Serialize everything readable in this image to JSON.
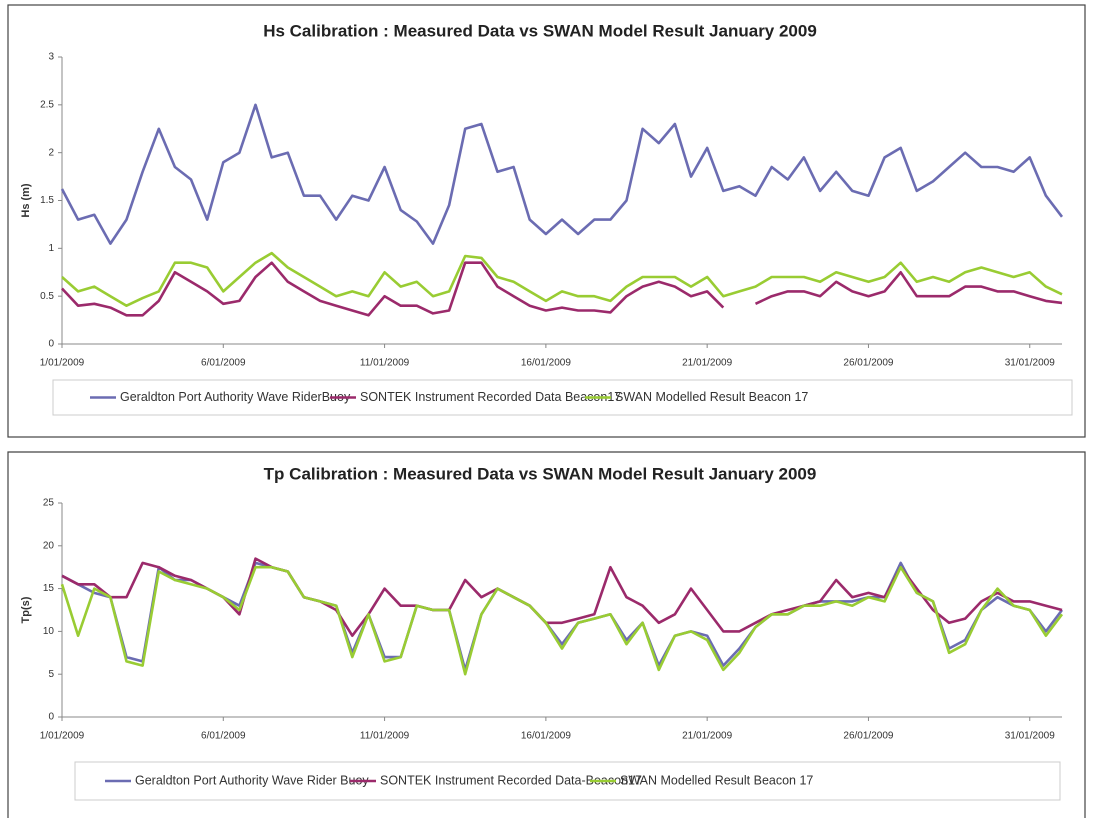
{
  "chart_data": [
    {
      "type": "line",
      "title": "Hs Calibration : Measured Data  vs SWAN Model Result January 2009",
      "y_label": "Hs (m)",
      "x": [
        0,
        0.5,
        1,
        1.5,
        2,
        2.5,
        3,
        3.5,
        4,
        4.5,
        5,
        5.5,
        6,
        6.5,
        7,
        7.5,
        8,
        8.5,
        9,
        9.5,
        10,
        10.5,
        11,
        11.5,
        12,
        12.5,
        13,
        13.5,
        14,
        14.5,
        15,
        15.5,
        16,
        16.5,
        17,
        17.5,
        18,
        18.5,
        19,
        19.5,
        20,
        20.5,
        21,
        21.5,
        22,
        22.5,
        23,
        23.5,
        24,
        24.5,
        25,
        25.5,
        26,
        26.5,
        27,
        27.5,
        28,
        28.5,
        29,
        29.5,
        30,
        30.5,
        31
      ],
      "xlim": [
        0,
        31
      ],
      "xticks": [
        {
          "value": 0,
          "label": "1/01/2009"
        },
        {
          "value": 5,
          "label": "6/01/2009"
        },
        {
          "value": 10,
          "label": "11/01/2009"
        },
        {
          "value": 15,
          "label": "16/01/2009"
        },
        {
          "value": 20,
          "label": "21/01/2009"
        },
        {
          "value": 25,
          "label": "26/01/2009"
        },
        {
          "value": 30,
          "label": "31/01/2009"
        }
      ],
      "ylim": [
        0,
        3
      ],
      "yticks": [
        0,
        0.5,
        1,
        1.5,
        2,
        2.5,
        3
      ],
      "grid": false,
      "legend": "bottom",
      "series": [
        {
          "name": "Geraldton Port Authority Wave RiderBuoy",
          "color": "#6b6cb2",
          "values": [
            1.62,
            1.3,
            1.35,
            1.05,
            1.3,
            1.8,
            2.25,
            1.85,
            1.72,
            1.3,
            1.9,
            2.0,
            2.5,
            1.95,
            2.0,
            1.55,
            1.55,
            1.3,
            1.55,
            1.5,
            1.85,
            1.4,
            1.28,
            1.05,
            1.45,
            2.25,
            2.3,
            1.8,
            1.85,
            1.3,
            1.15,
            1.3,
            1.15,
            1.3,
            1.3,
            1.5,
            2.25,
            2.1,
            2.3,
            1.75,
            2.05,
            1.6,
            1.65,
            1.55,
            1.85,
            1.72,
            1.95,
            1.6,
            1.8,
            1.6,
            1.55,
            1.95,
            2.05,
            1.6,
            1.7,
            1.85,
            2.0,
            1.85,
            1.85,
            1.8,
            1.95,
            1.55,
            1.33
          ]
        },
        {
          "name": "SONTEK Instrument Recorded Data Beacon17",
          "color": "#9b2a6b",
          "values": [
            0.58,
            0.4,
            0.42,
            0.38,
            0.3,
            0.3,
            0.45,
            0.75,
            0.65,
            0.55,
            0.42,
            0.45,
            0.7,
            0.85,
            0.65,
            0.55,
            0.45,
            0.4,
            0.35,
            0.3,
            0.5,
            0.4,
            0.4,
            0.32,
            0.35,
            0.85,
            0.85,
            0.6,
            0.5,
            0.4,
            0.35,
            0.38,
            0.35,
            0.35,
            0.33,
            0.5,
            0.6,
            0.65,
            0.6,
            0.5,
            0.55,
            0.38,
            null,
            0.42,
            0.5,
            0.55,
            0.55,
            0.5,
            0.65,
            0.55,
            0.5,
            0.55,
            0.75,
            0.5,
            0.5,
            0.5,
            0.6,
            0.6,
            0.55,
            0.55,
            0.5,
            0.45,
            0.43
          ]
        },
        {
          "name": "SWAN Modelled Result Beacon 17",
          "color": "#99cc33",
          "values": [
            0.7,
            0.55,
            0.6,
            0.5,
            0.4,
            0.48,
            0.55,
            0.85,
            0.85,
            0.8,
            0.55,
            0.7,
            0.85,
            0.95,
            0.8,
            0.7,
            0.6,
            0.5,
            0.55,
            0.5,
            0.75,
            0.6,
            0.65,
            0.5,
            0.55,
            0.92,
            0.9,
            0.7,
            0.65,
            0.55,
            0.45,
            0.55,
            0.5,
            0.5,
            0.45,
            0.6,
            0.7,
            0.7,
            0.7,
            0.6,
            0.7,
            0.5,
            0.55,
            0.6,
            0.7,
            0.7,
            0.7,
            0.65,
            0.75,
            0.7,
            0.65,
            0.7,
            0.85,
            0.65,
            0.7,
            0.65,
            0.75,
            0.8,
            0.75,
            0.7,
            0.75,
            0.6,
            0.52
          ]
        }
      ]
    },
    {
      "type": "line",
      "title": "Tp Calibration : Measured Data  vs SWAN Model Result January 2009",
      "y_label": "Tp(s)",
      "x": [
        0,
        0.5,
        1,
        1.5,
        2,
        2.5,
        3,
        3.5,
        4,
        4.5,
        5,
        5.5,
        6,
        6.5,
        7,
        7.5,
        8,
        8.5,
        9,
        9.5,
        10,
        10.5,
        11,
        11.5,
        12,
        12.5,
        13,
        13.5,
        14,
        14.5,
        15,
        15.5,
        16,
        16.5,
        17,
        17.5,
        18,
        18.5,
        19,
        19.5,
        20,
        20.5,
        21,
        21.5,
        22,
        22.5,
        23,
        23.5,
        24,
        24.5,
        25,
        25.5,
        26,
        26.5,
        27,
        27.5,
        28,
        28.5,
        29,
        29.5,
        30,
        30.5,
        31
      ],
      "xlim": [
        0,
        31
      ],
      "xticks": [
        {
          "value": 0,
          "label": "1/01/2009"
        },
        {
          "value": 5,
          "label": "6/01/2009"
        },
        {
          "value": 10,
          "label": "11/01/2009"
        },
        {
          "value": 15,
          "label": "16/01/2009"
        },
        {
          "value": 20,
          "label": "21/01/2009"
        },
        {
          "value": 25,
          "label": "26/01/2009"
        },
        {
          "value": 30,
          "label": "31/01/2009"
        }
      ],
      "ylim": [
        0,
        25
      ],
      "yticks": [
        0,
        5,
        10,
        15,
        20,
        25
      ],
      "grid": false,
      "legend": "bottom",
      "series": [
        {
          "name": "Geraldton Port Authority Wave Rider Buoy",
          "color": "#6b6cb2",
          "values": [
            16.5,
            15.5,
            14.5,
            14,
            7,
            6.5,
            17.5,
            16,
            16,
            15,
            14,
            13,
            18,
            17.5,
            17,
            14,
            13.5,
            13,
            7.5,
            12,
            7,
            7,
            13,
            12.5,
            12.5,
            5.5,
            12,
            15,
            14,
            13,
            11,
            8.5,
            11,
            11.5,
            12,
            9,
            11,
            6,
            9.5,
            10,
            9.5,
            6,
            8,
            10.5,
            12,
            12,
            13,
            13.5,
            13.5,
            13.5,
            14,
            14,
            18,
            14.5,
            13.5,
            8,
            9,
            12.5,
            14,
            13,
            12.5,
            10,
            12.5
          ]
        },
        {
          "name": "SONTEK Instrument Recorded Data-Beacon17",
          "color": "#9b2a6b",
          "values": [
            16.5,
            15.5,
            15.5,
            14,
            14,
            18,
            17.5,
            16.5,
            16,
            15,
            14,
            12,
            18.5,
            17.5,
            17,
            14,
            13.5,
            12.5,
            9.5,
            12,
            15,
            13,
            13,
            12.5,
            12.5,
            16,
            14,
            15,
            14,
            13,
            11,
            11,
            11.5,
            12,
            17.5,
            14,
            13,
            11,
            12,
            15,
            12.5,
            10,
            10,
            11,
            12,
            12.5,
            13,
            13.5,
            16,
            14,
            14.5,
            14,
            17.5,
            15,
            12.5,
            11,
            11.5,
            13.5,
            14.5,
            13.5,
            13.5,
            13,
            12.5
          ]
        },
        {
          "name": "SWAN Modelled Result Beacon 17",
          "color": "#99cc33",
          "values": [
            15.5,
            9.5,
            15,
            14,
            6.5,
            6,
            17,
            16,
            15.5,
            15,
            14,
            12.5,
            17.5,
            17.5,
            17,
            14,
            13.5,
            13,
            7,
            12,
            6.5,
            7,
            13,
            12.5,
            12.5,
            5,
            12,
            15,
            14,
            13,
            11,
            8,
            11,
            11.5,
            12,
            8.5,
            11,
            5.5,
            9.5,
            10,
            9,
            5.5,
            7.5,
            10.5,
            12,
            12,
            13,
            13,
            13.5,
            13,
            14,
            13.5,
            17.5,
            14.5,
            13.5,
            7.5,
            8.5,
            12.5,
            15,
            13,
            12.5,
            9.5,
            12
          ]
        }
      ]
    }
  ]
}
